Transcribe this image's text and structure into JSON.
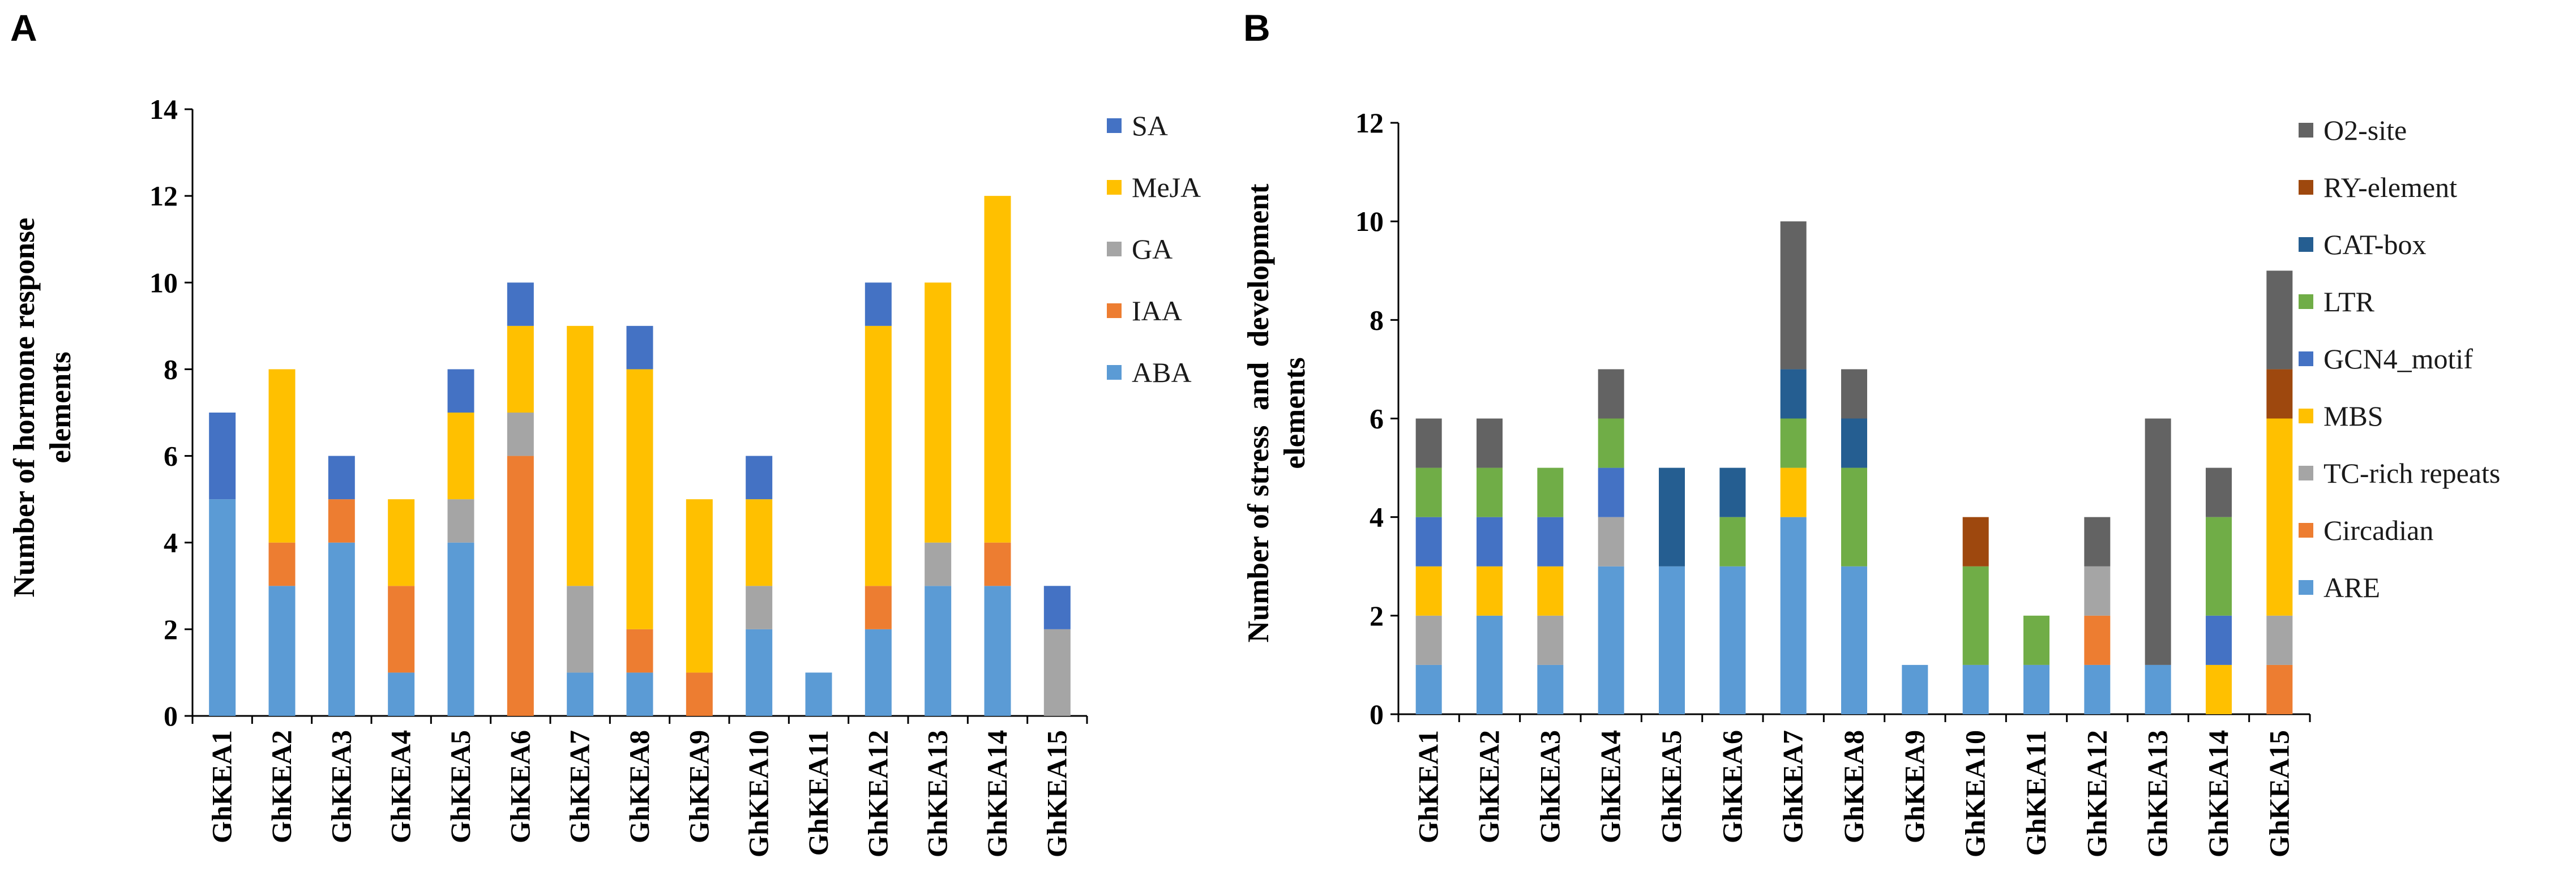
{
  "chart_data": [
    {
      "panel": "A",
      "type": "bar",
      "stacked": true,
      "title": "",
      "xlabel": "",
      "ylabel": [
        "Number of hormone response",
        "elements"
      ],
      "ylim": [
        0,
        14
      ],
      "yticks": [
        0,
        2,
        4,
        6,
        8,
        10,
        12,
        14
      ],
      "legend_position": "top-right",
      "categories": [
        "GhKEA1",
        "GhKEA2",
        "GhKEA3",
        "GhKEA4",
        "GhKEA5",
        "GhKEA6",
        "GhKEA7",
        "GhKEA8",
        "GhKEA9",
        "GhKEA10",
        "GhKEA11",
        "GhKEA12",
        "GhKEA13",
        "GhKEA14",
        "GhKEA15"
      ],
      "series": [
        {
          "name": "ABA",
          "color": "#5B9BD5",
          "values": [
            5,
            3,
            4,
            1,
            4,
            0,
            1,
            1,
            0,
            2,
            1,
            2,
            3,
            3,
            0
          ]
        },
        {
          "name": "IAA",
          "color": "#ED7D31",
          "values": [
            0,
            1,
            1,
            2,
            0,
            6,
            0,
            1,
            1,
            0,
            0,
            1,
            0,
            1,
            0
          ]
        },
        {
          "name": "GA",
          "color": "#A5A5A5",
          "values": [
            0,
            0,
            0,
            0,
            1,
            1,
            2,
            0,
            0,
            1,
            0,
            0,
            1,
            0,
            2
          ]
        },
        {
          "name": "MeJA",
          "color": "#FFC000",
          "values": [
            0,
            4,
            0,
            2,
            2,
            2,
            6,
            6,
            4,
            2,
            0,
            6,
            6,
            8,
            0
          ]
        },
        {
          "name": "SA",
          "color": "#4472C4",
          "values": [
            2,
            0,
            1,
            0,
            1,
            1,
            0,
            1,
            0,
            1,
            0,
            1,
            0,
            0,
            1
          ]
        }
      ],
      "legend_order": [
        "SA",
        "MeJA",
        "GA",
        "IAA",
        "ABA"
      ]
    },
    {
      "panel": "B",
      "type": "bar",
      "stacked": true,
      "title": "",
      "xlabel": "",
      "ylabel": [
        "Number of stress  and  development",
        "elements"
      ],
      "ylim": [
        0,
        12
      ],
      "yticks": [
        0,
        2,
        4,
        6,
        8,
        10,
        12
      ],
      "legend_position": "top-right",
      "categories": [
        "GhKEA1",
        "GhKEA2",
        "GhKEA3",
        "GhKEA4",
        "GhKEA5",
        "GhKEA6",
        "GhKEA7",
        "GhKEA8",
        "GhKEA9",
        "GhKEA10",
        "GhKEA11",
        "GhKEA12",
        "GhKEA13",
        "GhKEA14",
        "GhKEA15"
      ],
      "series": [
        {
          "name": "ARE",
          "color": "#5B9BD5",
          "values": [
            1,
            2,
            1,
            3,
            3,
            3,
            4,
            3,
            1,
            1,
            1,
            1,
            1,
            0,
            0
          ]
        },
        {
          "name": "Circadian",
          "color": "#ED7D31",
          "values": [
            0,
            0,
            0,
            0,
            0,
            0,
            0,
            0,
            0,
            0,
            0,
            1,
            0,
            0,
            1
          ]
        },
        {
          "name": "TC-rich repeats",
          "color": "#A5A5A5",
          "values": [
            1,
            0,
            1,
            1,
            0,
            0,
            0,
            0,
            0,
            0,
            0,
            1,
            0,
            0,
            1
          ]
        },
        {
          "name": "MBS",
          "color": "#FFC000",
          "values": [
            1,
            1,
            1,
            0,
            0,
            0,
            1,
            0,
            0,
            0,
            0,
            0,
            0,
            1,
            4
          ]
        },
        {
          "name": "GCN4_motif",
          "color": "#4472C4",
          "values": [
            1,
            1,
            1,
            1,
            0,
            0,
            0,
            0,
            0,
            0,
            0,
            0,
            0,
            1,
            0
          ]
        },
        {
          "name": "LTR",
          "color": "#70AD47",
          "values": [
            1,
            1,
            1,
            1,
            0,
            1,
            1,
            2,
            0,
            2,
            1,
            0,
            0,
            2,
            0
          ]
        },
        {
          "name": "CAT-box",
          "color": "#255E91",
          "values": [
            0,
            0,
            0,
            0,
            2,
            1,
            1,
            1,
            0,
            0,
            0,
            0,
            0,
            0,
            0
          ]
        },
        {
          "name": "RY-element",
          "color": "#9E480E",
          "values": [
            0,
            0,
            0,
            0,
            0,
            0,
            0,
            0,
            0,
            1,
            0,
            0,
            0,
            0,
            1
          ]
        },
        {
          "name": "O2-site",
          "color": "#636363",
          "values": [
            1,
            1,
            0,
            1,
            0,
            0,
            3,
            1,
            0,
            0,
            0,
            1,
            5,
            1,
            2
          ]
        }
      ],
      "legend_order": [
        "O2-site",
        "RY-element",
        "CAT-box",
        "LTR",
        "GCN4_motif",
        "MBS",
        "TC-rich repeats",
        "Circadian",
        "ARE"
      ]
    }
  ]
}
